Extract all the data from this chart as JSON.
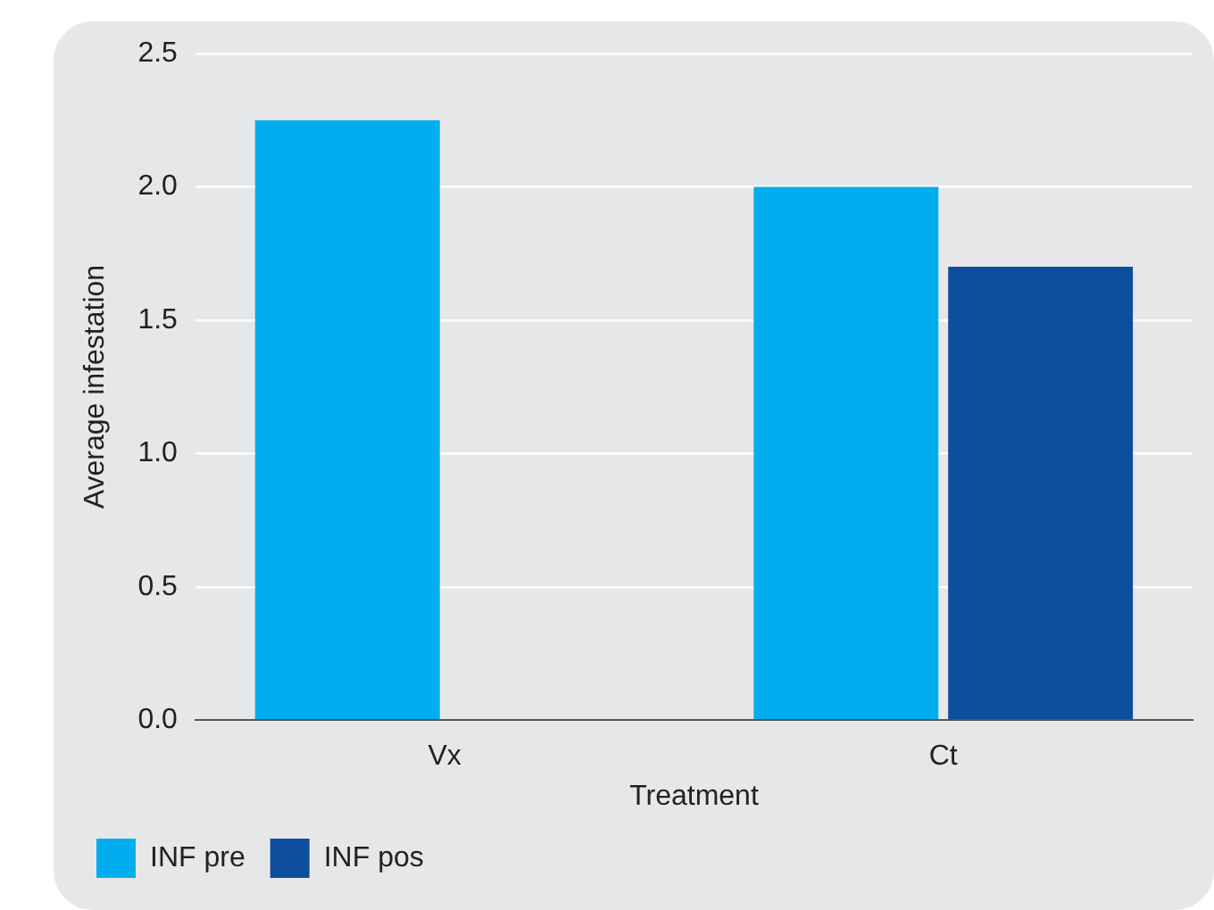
{
  "chart_data": {
    "type": "bar",
    "xlabel": "Treatment",
    "ylabel": "Average infestation",
    "categories": [
      "Vx",
      "Ct"
    ],
    "series": [
      {
        "name": "INF pre",
        "color": "#00aeef",
        "values": [
          2.25,
          2.0
        ]
      },
      {
        "name": "INF pos",
        "color": "#0b4f9e",
        "values": [
          0,
          1.7
        ]
      }
    ],
    "ylim": [
      0,
      2.5
    ],
    "yticks": [
      {
        "value": 0,
        "label": "0.0"
      },
      0.5,
      {
        "value": 1,
        "label": "1.0"
      },
      1.5,
      {
        "value": 2,
        "label": "2.0"
      },
      2.5
    ],
    "grid": "y",
    "legend": "bottom left"
  }
}
